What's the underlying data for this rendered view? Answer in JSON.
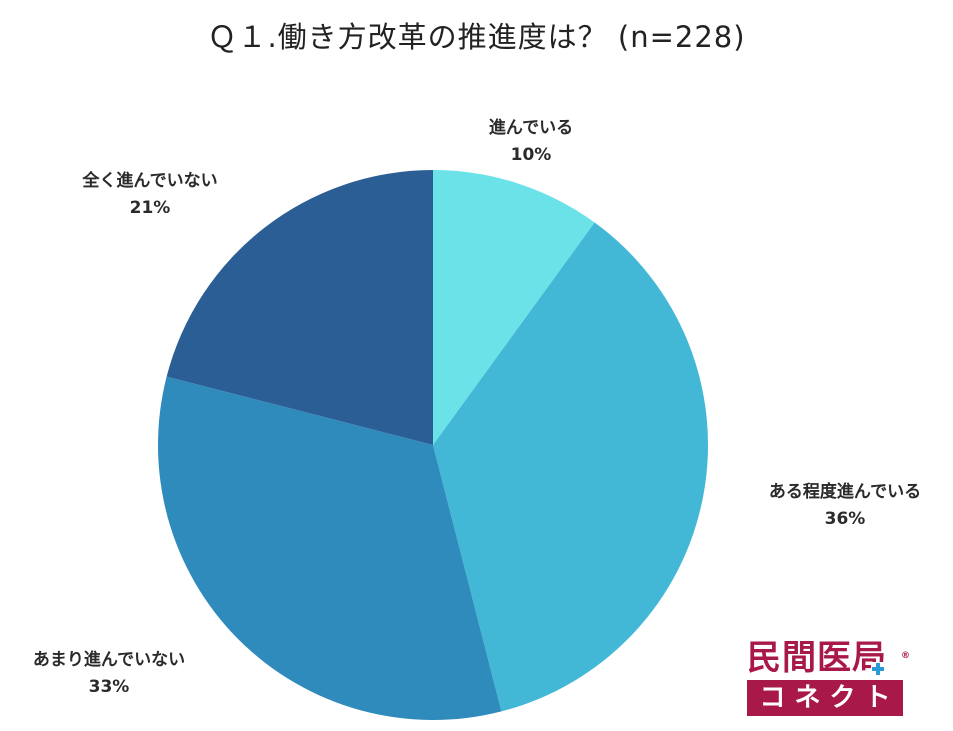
{
  "chart_data": {
    "type": "pie",
    "title": "Ｑ１.働き方改革の推進度は？ (n=228)",
    "slices": [
      {
        "label": "進んでいる",
        "value": 10,
        "value_label": "10%",
        "color": "#6ae2e8"
      },
      {
        "label": "ある程度進んでいる",
        "value": 36,
        "value_label": "36%",
        "color": "#43b8d6"
      },
      {
        "label": "あまり進んでいない",
        "value": 33,
        "value_label": "33%",
        "color": "#2e8bbb"
      },
      {
        "label": "全く進んでいない",
        "value": 21,
        "value_label": "21%",
        "color": "#2c5e96"
      }
    ],
    "start": "12 o'clock",
    "direction": "clockwise"
  },
  "logo": {
    "top_text": "民間医局",
    "bottom_text": "コネクト",
    "registered": "®",
    "color": "#a8194a"
  }
}
